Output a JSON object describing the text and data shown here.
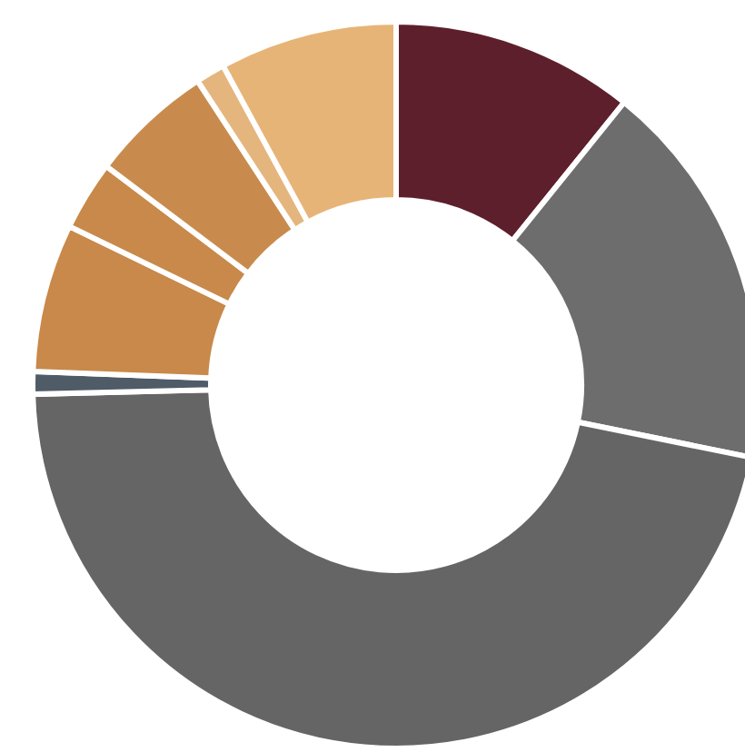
{
  "chart_data": {
    "type": "donut",
    "categories": [
      null,
      null,
      null,
      null,
      null,
      null,
      null,
      null,
      null
    ],
    "values": [
      10.8,
      17.4,
      46.4,
      1.0,
      6.6,
      3.1,
      5.5,
      1.3,
      7.9
    ],
    "colors": [
      "#5e1f2c",
      "#6d6d6d",
      "#656565",
      "#4f5b66",
      "#c8894a",
      "#c8894a",
      "#c98b4d",
      "#e4b67e",
      "#e7b477"
    ]
  }
}
